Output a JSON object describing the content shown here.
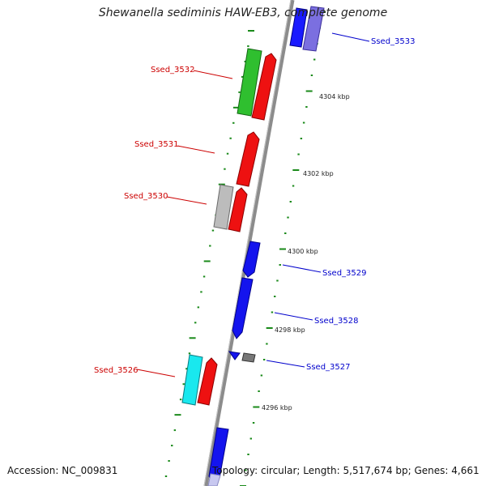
{
  "title": "Shewanella sediminis HAW-EB3, complete genome",
  "footer": {
    "accession": "Accession: NC_009831",
    "topology": "Topology: circular; Length: 5,517,674 bp; Genes: 4,661"
  },
  "colors": {
    "backbone": "#8a8a8a",
    "forward_label": "#cc0000",
    "reverse_label": "#0000cc",
    "tick": "#1a8a1a",
    "scale_text": "#222222"
  },
  "scale_labels": [
    "4304 kbp",
    "4302 kbp",
    "4300 kbp",
    "4298 kbp",
    "4296 kbp"
  ],
  "gene_labels": {
    "forward": [
      "Ssed_3532",
      "Ssed_3531",
      "Ssed_3530",
      "Ssed_3526"
    ],
    "reverse": [
      "Ssed_3533",
      "Ssed_3529",
      "Ssed_3528",
      "Ssed_3527"
    ]
  }
}
